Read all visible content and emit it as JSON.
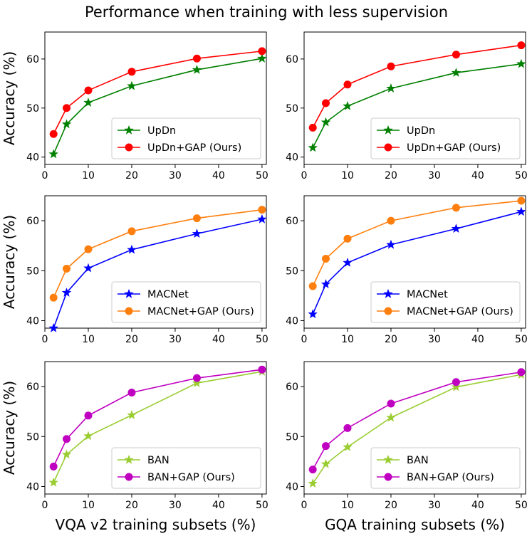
{
  "figure": {
    "title": "Performance when training with less supervision"
  },
  "chart_data": [
    {
      "type": "line",
      "panel": "row1-left",
      "title": "",
      "xlabel": "",
      "ylabel": "Accuracy (%)",
      "x": [
        2,
        5,
        10,
        20,
        35,
        50
      ],
      "xlim": [
        0,
        51
      ],
      "ylim": [
        38.5,
        65.5
      ],
      "xticks": [
        0,
        10,
        20,
        30,
        40,
        50
      ],
      "yticks": [
        40,
        50,
        60
      ],
      "legend_position": "lower-right",
      "series": [
        {
          "name": "UpDn",
          "color": "#008000",
          "marker": "star",
          "values": [
            40.6,
            46.7,
            51.1,
            54.5,
            57.8,
            60.1
          ]
        },
        {
          "name": "UpDn+GAP (Ours)",
          "color": "#ff0000",
          "marker": "circle",
          "values": [
            44.7,
            50.0,
            53.6,
            57.4,
            60.1,
            61.6
          ]
        }
      ]
    },
    {
      "type": "line",
      "panel": "row1-right",
      "title": "",
      "xlabel": "",
      "ylabel": "",
      "x": [
        2,
        5,
        10,
        20,
        35,
        50
      ],
      "xlim": [
        0,
        51
      ],
      "ylim": [
        38.5,
        65.5
      ],
      "xticks": [
        0,
        10,
        20,
        30,
        40,
        50
      ],
      "yticks": [
        40,
        50,
        60
      ],
      "legend_position": "lower-right",
      "series": [
        {
          "name": "UpDn",
          "color": "#008000",
          "marker": "star",
          "values": [
            41.9,
            47.1,
            50.4,
            54.0,
            57.2,
            59.0
          ]
        },
        {
          "name": "UpDn+GAP (Ours)",
          "color": "#ff0000",
          "marker": "circle",
          "values": [
            46.0,
            51.0,
            54.8,
            58.5,
            60.9,
            62.8
          ]
        }
      ]
    },
    {
      "type": "line",
      "panel": "row2-left",
      "title": "",
      "xlabel": "",
      "ylabel": "Accuracy (%)",
      "x": [
        2,
        5,
        10,
        20,
        35,
        50
      ],
      "xlim": [
        0,
        51
      ],
      "ylim": [
        38.5,
        65.0
      ],
      "xticks": [
        0,
        10,
        20,
        30,
        40,
        50
      ],
      "yticks": [
        40,
        50,
        60
      ],
      "legend_position": "lower-right",
      "series": [
        {
          "name": "MACNet",
          "color": "#0000ff",
          "marker": "star",
          "values": [
            38.5,
            45.6,
            50.5,
            54.2,
            57.4,
            60.3
          ]
        },
        {
          "name": "MACNet+GAP (Ours)",
          "color": "#ff7f0e",
          "marker": "circle",
          "values": [
            44.6,
            50.4,
            54.3,
            57.9,
            60.5,
            62.2
          ]
        }
      ]
    },
    {
      "type": "line",
      "panel": "row2-right",
      "title": "",
      "xlabel": "",
      "ylabel": "",
      "x": [
        2,
        5,
        10,
        20,
        35,
        50
      ],
      "xlim": [
        0,
        51
      ],
      "ylim": [
        38.5,
        65.0
      ],
      "xticks": [
        0,
        10,
        20,
        30,
        40,
        50
      ],
      "yticks": [
        40,
        50,
        60
      ],
      "legend_position": "lower-right",
      "series": [
        {
          "name": "MACNet",
          "color": "#0000ff",
          "marker": "star",
          "values": [
            41.3,
            47.3,
            51.6,
            55.2,
            58.4,
            61.8
          ]
        },
        {
          "name": "MACNet+GAP (Ours)",
          "color": "#ff7f0e",
          "marker": "circle",
          "values": [
            46.9,
            52.4,
            56.4,
            60.0,
            62.6,
            64.0
          ]
        }
      ]
    },
    {
      "type": "line",
      "panel": "row3-left",
      "title": "",
      "xlabel": "VQA v2 training subsets (%)",
      "ylabel": "Accuracy (%)",
      "x": [
        2,
        5,
        10,
        20,
        35,
        50
      ],
      "xlim": [
        0,
        51
      ],
      "ylim": [
        38.5,
        65.0
      ],
      "xticks": [
        0,
        10,
        20,
        30,
        40,
        50
      ],
      "yticks": [
        40,
        50,
        60
      ],
      "legend_position": "lower-right",
      "series": [
        {
          "name": "BAN",
          "color": "#9acd32",
          "marker": "star",
          "values": [
            40.8,
            46.4,
            50.1,
            54.3,
            60.7,
            63.0
          ]
        },
        {
          "name": "BAN+GAP (Ours)",
          "color": "#c000c0",
          "marker": "circle",
          "values": [
            44.0,
            49.5,
            54.2,
            58.8,
            61.7,
            63.4
          ]
        }
      ]
    },
    {
      "type": "line",
      "panel": "row3-right",
      "title": "",
      "xlabel": "GQA training subsets (%)",
      "ylabel": "",
      "x": [
        2,
        5,
        10,
        20,
        35,
        50
      ],
      "xlim": [
        0,
        51
      ],
      "ylim": [
        38.5,
        65.0
      ],
      "xticks": [
        0,
        10,
        20,
        30,
        40,
        50
      ],
      "yticks": [
        40,
        50,
        60
      ],
      "legend_position": "lower-right",
      "series": [
        {
          "name": "BAN",
          "color": "#9acd32",
          "marker": "star",
          "values": [
            40.6,
            44.5,
            47.9,
            53.8,
            59.9,
            62.4
          ]
        },
        {
          "name": "BAN+GAP (Ours)",
          "color": "#c000c0",
          "marker": "circle",
          "values": [
            43.4,
            48.1,
            51.7,
            56.6,
            60.9,
            62.9
          ]
        }
      ]
    }
  ]
}
